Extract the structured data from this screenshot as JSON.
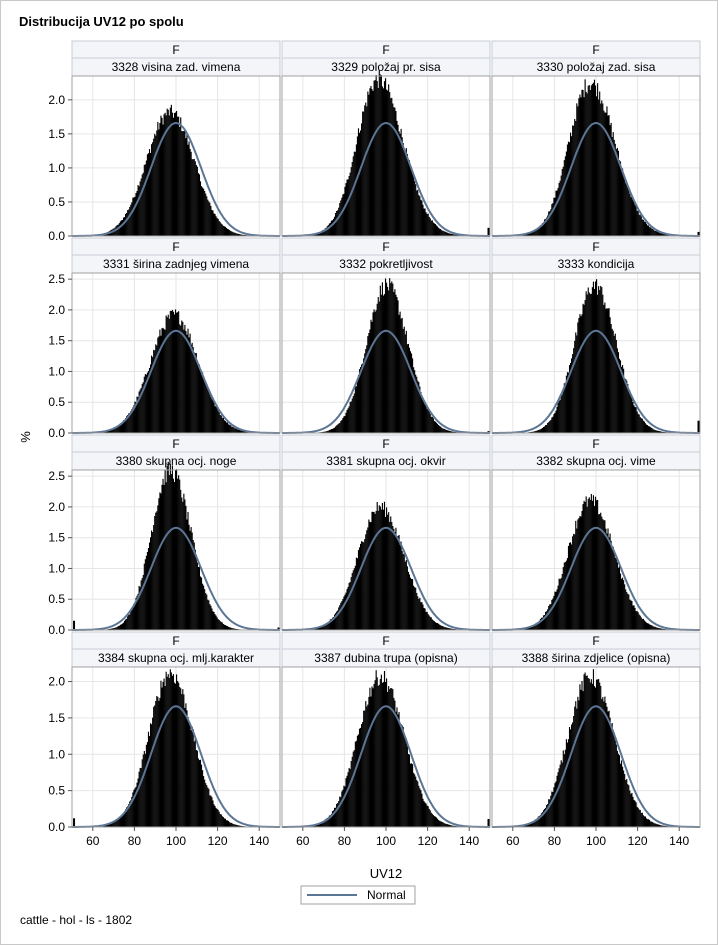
{
  "title": "Distribucija UV12 po spolu",
  "footnote": "cattle - hol - ls - 1802",
  "legend": {
    "label": "Normal"
  },
  "colors": {
    "bar": "#000000",
    "normal_curve": "#5b7594",
    "grid": "#e6e6e6",
    "header_bg": "#f3f5f9",
    "border": "#a0a0a0"
  },
  "chart_data": {
    "type": "histogram",
    "title": "Distribucija UV12 po spolu",
    "xlabel": "UV12",
    "ylabel": "%",
    "xlim": [
      50,
      150
    ],
    "xticks": [
      60,
      80,
      100,
      120,
      140
    ],
    "grid": true,
    "legend_position": "bottom-center",
    "row_header": "F",
    "normal": {
      "mean": 100,
      "sd": 12,
      "peak_pct": 1.66
    },
    "rows": [
      {
        "ylim": [
          0,
          2.35
        ],
        "yticks": [
          "0.0",
          "0.5",
          "1.0",
          "1.5",
          "2.0"
        ]
      },
      {
        "ylim": [
          0,
          2.6
        ],
        "yticks": [
          "0.0",
          "0.5",
          "1.0",
          "1.5",
          "2.0",
          "2.5"
        ]
      },
      {
        "ylim": [
          0,
          2.6
        ],
        "yticks": [
          "0.0",
          "0.5",
          "1.0",
          "1.5",
          "2.0",
          "2.5"
        ]
      },
      {
        "ylim": [
          0,
          2.2
        ],
        "yticks": [
          "0.0",
          "0.5",
          "1.0",
          "1.5",
          "2.0"
        ]
      }
    ],
    "panels": [
      {
        "sex": "F",
        "trait": "3328 visina zad. vimena",
        "peak": 1.82,
        "peak_at": 97,
        "sd": 11.5,
        "skew": 0.0,
        "tail_left": 0.01,
        "tail_right": 0.01
      },
      {
        "sex": "F",
        "trait": "3329 položaj pr. sisa",
        "peak": 2.3,
        "peak_at": 96,
        "sd": 11,
        "skew": 0.5,
        "tail_left": 0.01,
        "tail_right": 0.12
      },
      {
        "sex": "F",
        "trait": "3330 položaj zad. sisa",
        "peak": 2.25,
        "peak_at": 97,
        "sd": 11,
        "skew": 0.5,
        "tail_left": 0.01,
        "tail_right": 0.06
      },
      {
        "sex": "F",
        "trait": "3331 širina zadnjeg vimena",
        "peak": 1.92,
        "peak_at": 99,
        "sd": 11.5,
        "skew": 0.0,
        "tail_left": 0.01,
        "tail_right": 0.01
      },
      {
        "sex": "F",
        "trait": "3332 pokretljivost",
        "peak": 2.4,
        "peak_at": 100,
        "sd": 10,
        "skew": 0.2,
        "tail_left": 0.01,
        "tail_right": 0.03
      },
      {
        "sex": "F",
        "trait": "3333 kondicija",
        "peak": 2.4,
        "peak_at": 99,
        "sd": 10,
        "skew": 0.3,
        "tail_left": 0.01,
        "tail_right": 0.2
      },
      {
        "sex": "F",
        "trait": "3380 skupna ocj. noge",
        "peak": 2.6,
        "peak_at": 97,
        "sd": 9.5,
        "skew": 0.3,
        "tail_left": 0.15,
        "tail_right": 0.04
      },
      {
        "sex": "F",
        "trait": "3381 skupna ocj. okvir",
        "peak": 2.0,
        "peak_at": 97,
        "sd": 11,
        "skew": 0.2,
        "tail_left": 0.01,
        "tail_right": 0.01
      },
      {
        "sex": "F",
        "trait": "3382 skupna ocj. vime",
        "peak": 2.1,
        "peak_at": 97,
        "sd": 11,
        "skew": 0.2,
        "tail_left": 0.01,
        "tail_right": 0.01
      },
      {
        "sex": "F",
        "trait": "3384 skupna ocj. mlj.karakter",
        "peak": 2.12,
        "peak_at": 97,
        "sd": 10.5,
        "skew": 0.2,
        "tail_left": 0.12,
        "tail_right": 0.01
      },
      {
        "sex": "F",
        "trait": "3387 dubina trupa (opisna)",
        "peak": 2.07,
        "peak_at": 97,
        "sd": 11,
        "skew": 0.2,
        "tail_left": 0.01,
        "tail_right": 0.11
      },
      {
        "sex": "F",
        "trait": "3388 širina zdjelice (opisna)",
        "peak": 2.07,
        "peak_at": 97,
        "sd": 11,
        "skew": 0.2,
        "tail_left": 0.01,
        "tail_right": 0.01
      }
    ]
  }
}
